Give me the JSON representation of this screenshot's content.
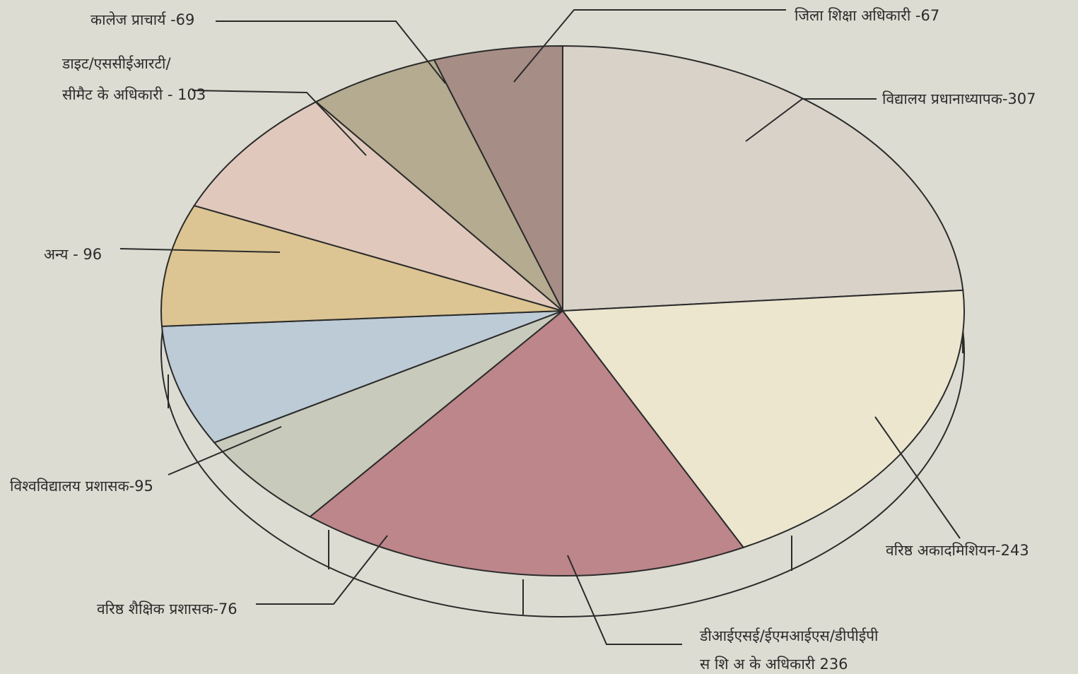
{
  "chart_data": {
    "type": "pie",
    "title": "",
    "slices": [
      {
        "label": "विद्यालय प्रधानाध्यापक-307",
        "value": 307,
        "color": "#d8d2c8"
      },
      {
        "label": "वरिष्ठ अकादमिशियन-243",
        "value": 243,
        "color": "#ece6cf"
      },
      {
        "label": "डीआईएसई/ईएमआईएस/डीपीईपी",
        "label2": "स शि अ के अधिकारी 236",
        "value": 236,
        "color": "#bd868a"
      },
      {
        "label": "वरिष्ठ शैक्षिक प्रशासक-76",
        "value": 76,
        "color": "#c8cabb"
      },
      {
        "label": "विश्वविद्यालय प्रशासक-95",
        "value": 95,
        "color": "#bccbd6"
      },
      {
        "label": "अन्य - 96",
        "value": 96,
        "color": "#dcc592"
      },
      {
        "label": "डाइट/एससीईआरटी/",
        "label2": "सीमैट के अधिकारी - 103",
        "value": 103,
        "color": "#e0c9bc"
      },
      {
        "label": "कालेज प्राचार्य -69",
        "value": 69,
        "color": "#b4ab90"
      },
      {
        "label": "जिला शिक्षा अधिकारी -67",
        "value": 67,
        "color": "#a68d86"
      }
    ]
  }
}
